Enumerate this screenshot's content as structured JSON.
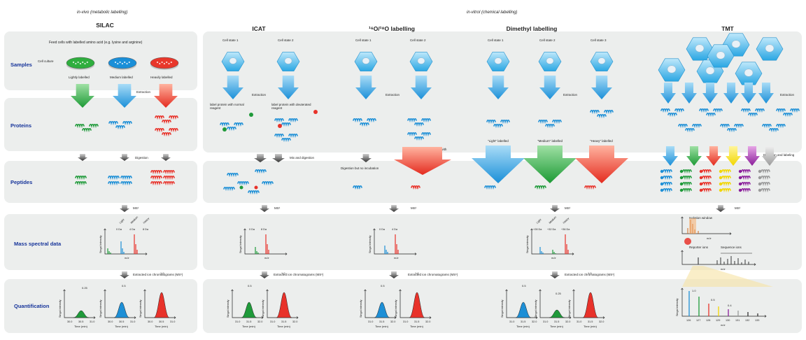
{
  "section_labels": {
    "in_vivo": "in-vivo (metabolic labelling)",
    "in_vitro": "in-vitrol (chemical labelling)"
  },
  "columns": {
    "silac": "SILAC",
    "icat": "ICAT",
    "o18": "¹⁶O/¹⁸O labelling",
    "dimethyl": "Dimethyl labelling",
    "tmt": "TMT"
  },
  "rows": {
    "samples": "Samples",
    "proteins": "Proteins",
    "peptides": "Peptides",
    "mass_spectral": "Mass spectral data",
    "quantification": "Quantification"
  },
  "silac": {
    "feed_text": "Feed cells with labelled amino acid (e.g. lysine and arginine)",
    "cell_culture": "Cell culture",
    "dish_labels": [
      "Lightly labelled",
      "Medium labelled",
      "Heavily labelled"
    ],
    "extraction": "Extraction",
    "digestion": "Digestion",
    "ms1": "MS¹",
    "peak_labels": [
      "Light",
      "Medium",
      "Heavy"
    ],
    "da_labels": [
      "0 Da",
      "4 Da",
      "8 Da"
    ],
    "xic": "Extracted ion chromatograms (MS¹)",
    "quant_values": [
      "0.25",
      "0.5",
      "1.0"
    ],
    "time_ticks": [
      "30.0",
      "30.5",
      "31.0",
      "30.0",
      "30.5",
      "31.0",
      "30.0",
      "30.5",
      "31.0"
    ]
  },
  "icat": {
    "cell_states": [
      "Cell state 1",
      "Cell state 2"
    ],
    "extraction": "Extraction",
    "label1": "label protein with normal reagent",
    "label2": "label protein with deuterated reagent",
    "mix": "Mix and digestion",
    "ms1": "MS¹",
    "da_labels": [
      "0 Da",
      "8 Da"
    ],
    "xic": "Extracted ion chromatograms (MS¹)",
    "quant_values": [
      "0.5",
      "1.0"
    ],
    "time_ticks": [
      "31.0",
      "31.5",
      "32.0",
      "31.0",
      "31.5",
      "32.0"
    ]
  },
  "o18": {
    "cell_states": [
      "Cell state 1",
      "Cell state 2"
    ],
    "extraction": "Extraction",
    "incubation": "Incubation with H₂¹⁸O with trypsin",
    "no_incubation": "Digestion but no incubation",
    "ms1": "MS¹",
    "da_labels": [
      "0 Da",
      "4 Da"
    ],
    "xic": "Extracted ion chromatograms (MS¹)",
    "quant_values": [
      "0.5",
      "1.0"
    ],
    "time_ticks": [
      "31.0",
      "31.5",
      "32.0",
      "31.0",
      "31.5",
      "32.0"
    ]
  },
  "dimethyl": {
    "cell_states": [
      "Cell state 1",
      "Cell state 2",
      "Cell state 3"
    ],
    "extraction": "Extraction",
    "labelled": [
      "\"Light\" labelled",
      "\"Medium\" labelled",
      "\"Heavy\" labelled"
    ],
    "reagents": [
      "NaBH₃CN",
      "NaBD₃CN",
      "NaBD₃CN"
    ],
    "formaldehyde": [
      "CH₂O",
      "CD₂O",
      "¹³CD₂O"
    ],
    "ms1": "MS¹",
    "da_labels": [
      "+28 Da",
      "+32 Da",
      "+36 Da"
    ],
    "peak_labels": [
      "Light",
      "Medium",
      "Heavy"
    ],
    "xic": "Extracted ion chromatograms (MS¹)",
    "quant_values": [
      "0.5",
      "0.25",
      "1.0"
    ],
    "time_ticks": [
      "31.0",
      "31.5",
      "32.0",
      "31.0",
      "31.5",
      "32.0",
      "31.0",
      "31.5",
      "32.0"
    ]
  },
  "tmt": {
    "extraction": "Extraction",
    "digestion_labeling": "Digestion and labeling",
    "ms1": "MS¹",
    "isolation": "Isolation window",
    "ms2": "MS²",
    "reporter": "Reporter ions",
    "sequence": "Sequence ions",
    "mz": "m/z",
    "quant_values": [
      "1.0",
      "0.5",
      "0.4"
    ],
    "reporter_ticks": [
      "126",
      "127",
      "128",
      "129",
      "130",
      "131",
      "132",
      "133"
    ]
  },
  "axes": {
    "signal": "Singal intensity",
    "mz": "m/z",
    "time": "Time (min)"
  },
  "colors": {
    "blue_band": "#16349a",
    "green": "#1f9a3a",
    "blue": "#1d8fd6",
    "red": "#e8322a",
    "band_bg": "#eceeed"
  }
}
